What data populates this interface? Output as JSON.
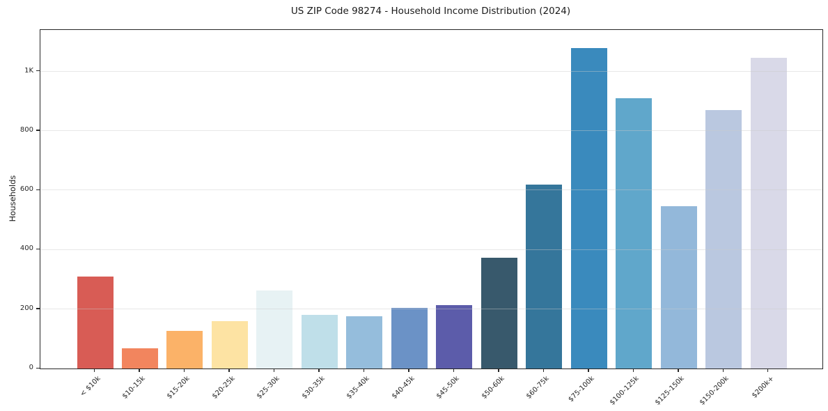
{
  "chart_data": {
    "type": "bar",
    "title": "US ZIP Code 98274 - Household Income Distribution (2024)",
    "xlabel": "",
    "ylabel": "Households",
    "categories": [
      "< $10k",
      "$10-15k",
      "$15-20k",
      "$20-25k",
      "$25-30k",
      "$30-35k",
      "$35-40k",
      "$40-45k",
      "$45-50k",
      "$50-60k",
      "$60-75k",
      "$75-100k",
      "$100-125k",
      "$125-150k",
      "$150-200k",
      "$200k+"
    ],
    "values": [
      310,
      68,
      127,
      159,
      263,
      180,
      177,
      205,
      213,
      372,
      620,
      1078,
      911,
      547,
      871,
      1046
    ],
    "bar_colors": [
      "#d85c55",
      "#f2855e",
      "#fbb268",
      "#fde3a3",
      "#e7f2f4",
      "#bfdfe9",
      "#95bddc",
      "#6b92c6",
      "#5c5caa",
      "#38596c",
      "#35769b",
      "#3a8abd",
      "#60a7cb",
      "#93b8da",
      "#bac8e0",
      "#d9d9e8"
    ],
    "ylim": [
      0,
      1140
    ],
    "yticks": {
      "values": [
        0,
        200,
        400,
        600,
        800,
        1000
      ],
      "labels": [
        "0",
        "200",
        "400",
        "600",
        "800",
        "1K"
      ]
    },
    "x_tick_rotation": 45,
    "grid": "horizontal gridlines drawn above bars",
    "legend": "none",
    "background_color": "#ffffff",
    "spine_color": "#262626",
    "grid_color": "#c9c9c9"
  }
}
